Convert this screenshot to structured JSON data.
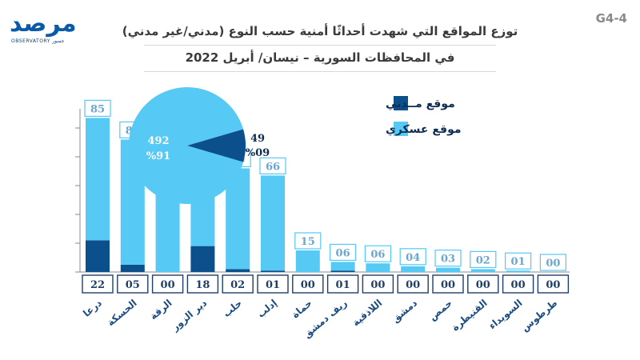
{
  "header": {
    "logo_text": "مرصد",
    "logo_subtitle": "OBSERVATORY جسور",
    "code": "G4-4",
    "title_line1": "توزع المواقع التي شهدت أحداثًا أمنية حسب النوع (مدني/غير مدني)",
    "title_line2": "في المحافظات السورية – نيسان/ أبريل 2022"
  },
  "colors": {
    "civilian": "#0b4f8c",
    "military": "#56c9f5",
    "outline": "#1f3f66"
  },
  "chart_data": [
    {
      "type": "bar",
      "stacked": true,
      "title": "توزع المواقع التي شهدت أحداثًا أمنية حسب النوع (مدني/غير مدني) في المحافظات السورية – نيسان/ أبريل 2022",
      "categories": [
        "طرطوس",
        "السويداء",
        "القنيطرة",
        "حمص",
        "دمشق",
        "اللاذقية",
        "ريف دمشق",
        "حماة",
        "إدلب",
        "حلب",
        "دير الزور",
        "الرقة",
        "الحسكة",
        "درعا"
      ],
      "series": [
        {
          "name": "موقع مــدني",
          "values": [
            0,
            0,
            0,
            0,
            0,
            0,
            1,
            0,
            1,
            2,
            18,
            0,
            5,
            22
          ],
          "labels": [
            "00",
            "00",
            "00",
            "00",
            "00",
            "00",
            "01",
            "00",
            "01",
            "02",
            "18",
            "00",
            "05",
            "22"
          ]
        },
        {
          "name": "موقع عسكري",
          "values": [
            0,
            1,
            2,
            3,
            4,
            6,
            6,
            15,
            66,
            70,
            59,
            88,
            87,
            85
          ],
          "labels": [
            "00",
            "01",
            "02",
            "03",
            "04",
            "06",
            "06",
            "15",
            "66",
            "70",
            "59",
            "88",
            "87",
            "85"
          ]
        }
      ],
      "ylim": [
        0,
        110
      ],
      "grid": false,
      "legend": "top-right"
    },
    {
      "type": "pie",
      "slices": [
        {
          "name": "موقع عسكري",
          "value": 492,
          "percent_label": "%91"
        },
        {
          "name": "موقع مــدني",
          "value": 49,
          "percent_label": "%09"
        }
      ]
    }
  ]
}
